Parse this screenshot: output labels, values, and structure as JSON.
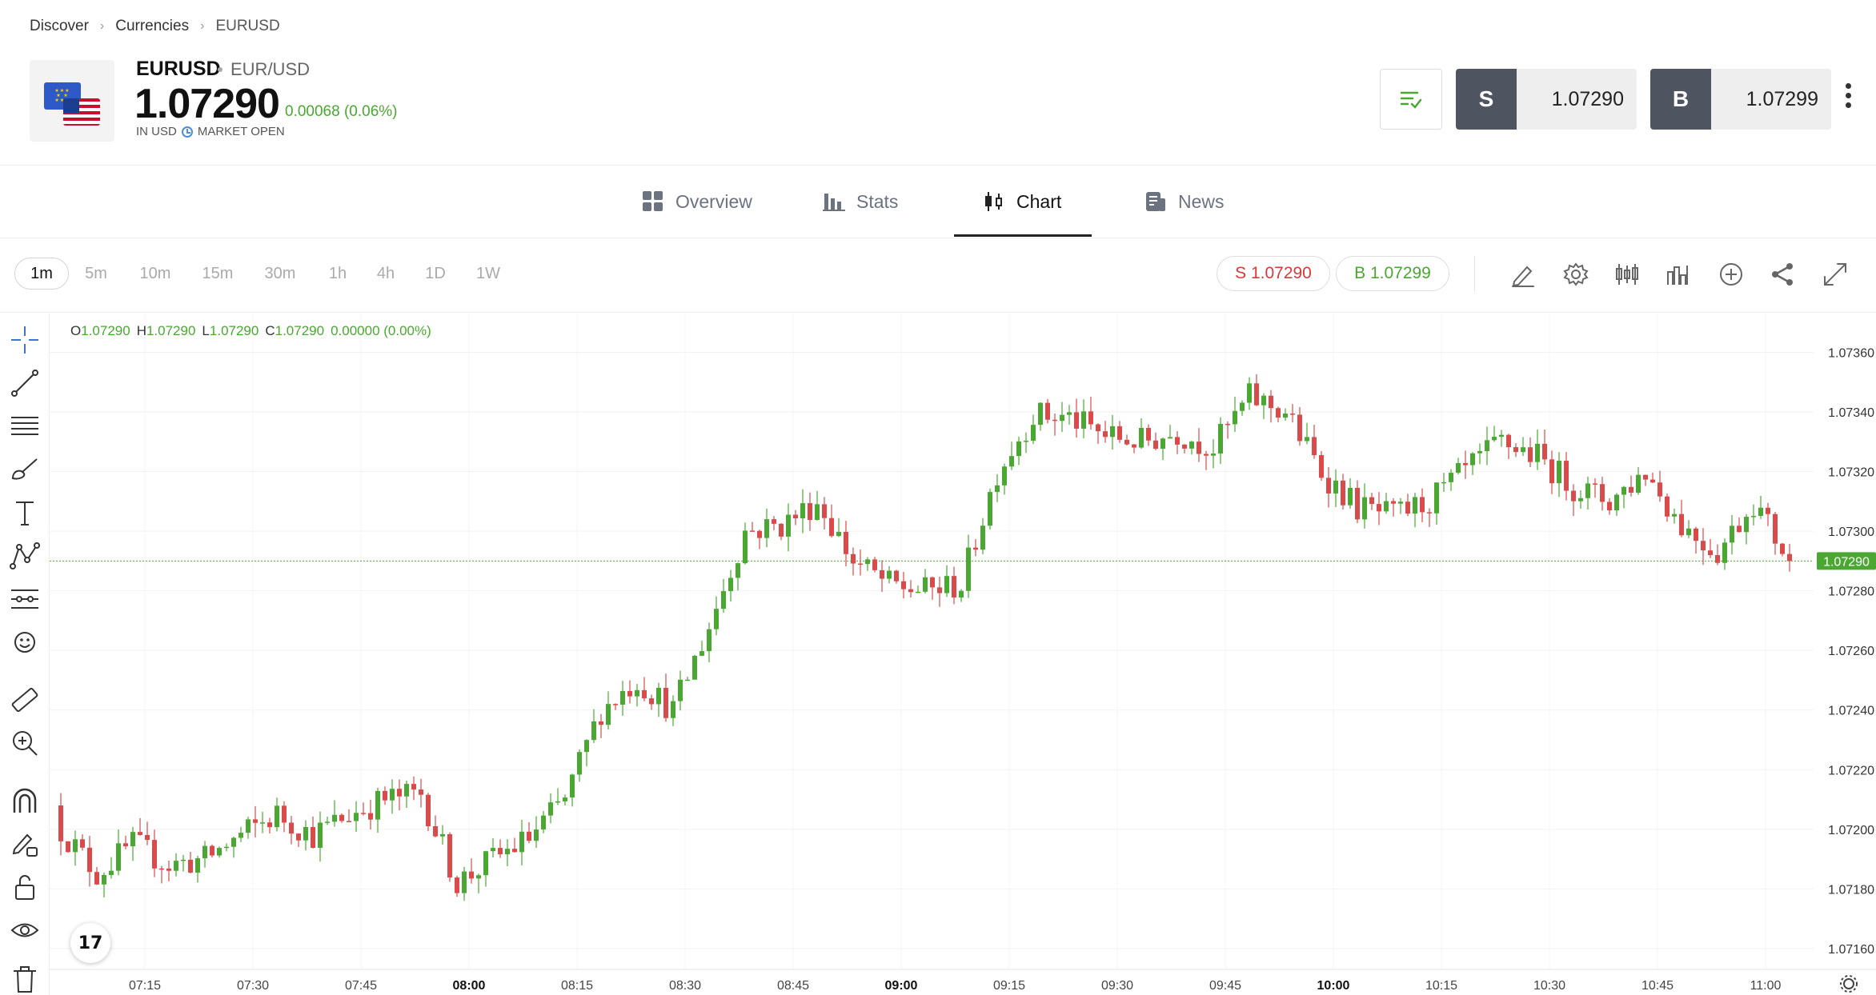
{
  "breadcrumb": [
    "Discover",
    "Currencies",
    "EURUSD"
  ],
  "instrument": {
    "symbol": "EURUSD",
    "pair": "EUR/USD",
    "price": "1.07290",
    "change": "0.00068 (0.06%)",
    "currency_note": "IN USD",
    "market_status": "MARKET OPEN"
  },
  "trade": {
    "sell_label": "S",
    "sell_price": "1.07290",
    "buy_label": "B",
    "buy_price": "1.07299"
  },
  "tabs": [
    {
      "label": "Overview",
      "icon": "grid-icon"
    },
    {
      "label": "Stats",
      "icon": "bar-stats-icon"
    },
    {
      "label": "Chart",
      "icon": "candles-icon",
      "active": true
    },
    {
      "label": "News",
      "icon": "news-icon"
    }
  ],
  "timeframes": [
    "1m",
    "5m",
    "10m",
    "15m",
    "30m",
    "1h",
    "4h",
    "1D",
    "1W"
  ],
  "active_timeframe": "1m",
  "quote_pills": {
    "sell": "S 1.07290",
    "buy": "B 1.07299"
  },
  "colors": {
    "up": "#4aa832",
    "down": "#d94b4b",
    "accent_green": "#4aa832",
    "sell_red": "#d63a3a"
  },
  "ohlc": {
    "o_label": "O",
    "o": "1.07290",
    "h_label": "H",
    "h": "1.07290",
    "l_label": "L",
    "l": "1.07290",
    "c_label": "C",
    "c": "1.07290",
    "chg": "0.00000 (0.00%)"
  },
  "chart_data": {
    "type": "candlestick",
    "interval": "1m",
    "x_ticks": [
      "07:15",
      "07:30",
      "07:45",
      "08:00",
      "08:15",
      "08:30",
      "08:45",
      "09:00",
      "09:15",
      "09:30",
      "09:45",
      "10:00",
      "10:15",
      "10:30",
      "10:45",
      "11:00"
    ],
    "x_tick_bold": [
      "08:00",
      "09:00",
      "10:00"
    ],
    "y_ticks": [
      "1.07360",
      "1.07340",
      "1.07320",
      "1.07300",
      "1.07280",
      "1.07260",
      "1.07240",
      "1.07220",
      "1.07200",
      "1.07180",
      "1.07160"
    ],
    "ylim": [
      1.07153,
      1.07373
    ],
    "last_price": "1.07290",
    "path_minutes": [
      0,
      5,
      10,
      15,
      20,
      25,
      30,
      35,
      40,
      45,
      50,
      55,
      60,
      65,
      70,
      75,
      80,
      85,
      90,
      95,
      100,
      105,
      110,
      115,
      120,
      125,
      130,
      135,
      140,
      145,
      150,
      155,
      160,
      165,
      170,
      175,
      180,
      185,
      190,
      195,
      200,
      205,
      210,
      215,
      220,
      225,
      230,
      235,
      240
    ],
    "path_closes": [
      1.072,
      1.07185,
      1.07195,
      1.07188,
      1.0719,
      1.07198,
      1.07205,
      1.07198,
      1.07205,
      1.0721,
      1.07212,
      1.07182,
      1.0719,
      1.07197,
      1.0721,
      1.0724,
      1.0725,
      1.0724,
      1.07268,
      1.073,
      1.07302,
      1.0731,
      1.0729,
      1.07282,
      1.0728,
      1.07282,
      1.0732,
      1.07339,
      1.07338,
      1.07332,
      1.0733,
      1.07333,
      1.07328,
      1.07345,
      1.0734,
      1.0732,
      1.07308,
      1.07305,
      1.0731,
      1.0732,
      1.0733,
      1.07325,
      1.07315,
      1.0731,
      1.0732,
      1.07302,
      1.07293,
      1.0731,
      1.0729
    ]
  }
}
